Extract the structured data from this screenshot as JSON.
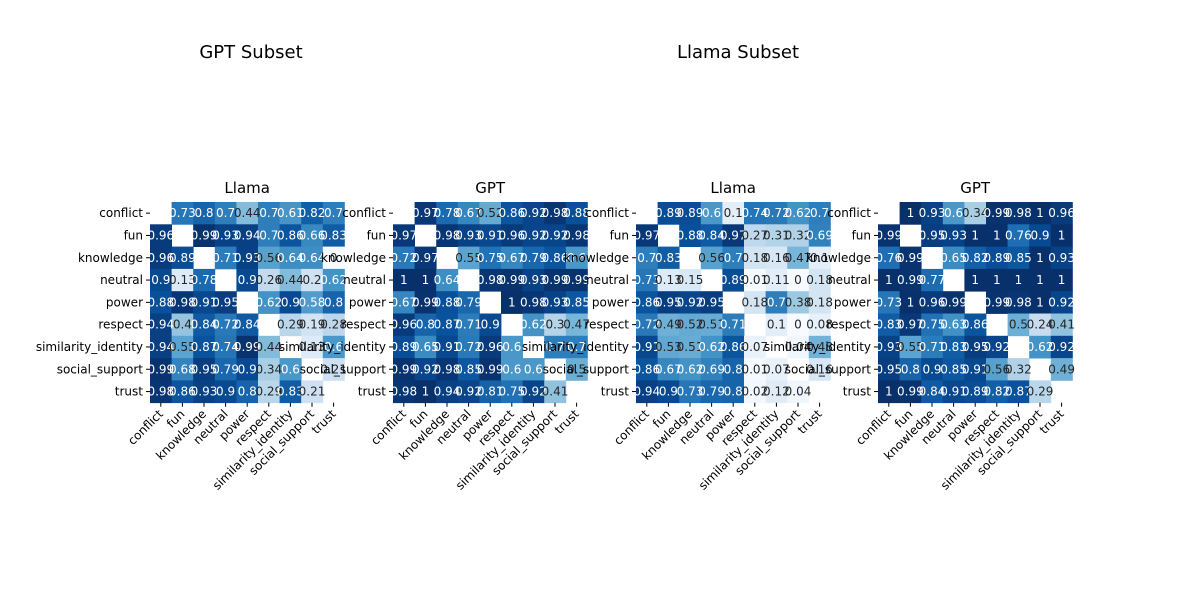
{
  "subset_titles": [
    "GPT Subset",
    "Llama Subset"
  ],
  "chart_data": [
    {
      "type": "heatmap",
      "title": "Llama",
      "subset": "GPT Subset",
      "categories": [
        "conflict",
        "fun",
        "knowledge",
        "neutral",
        "power",
        "respect",
        "similarity_identity",
        "social_support",
        "trust"
      ],
      "colormap": "Blues",
      "vrange": [
        0,
        1
      ],
      "matrix": [
        [
          null,
          0.73,
          0.8,
          0.7,
          0.44,
          0.7,
          0.61,
          0.82,
          0.7
        ],
        [
          0.96,
          null,
          0.99,
          0.93,
          0.94,
          0.7,
          0.86,
          0.66,
          0.83
        ],
        [
          0.96,
          0.89,
          null,
          0.71,
          0.93,
          0.56,
          0.64,
          0.64,
          0.0
        ],
        [
          0.9,
          0.13,
          0.78,
          null,
          0.9,
          0.26,
          0.44,
          0.2,
          0.62
        ],
        [
          0.88,
          0.98,
          0.91,
          0.95,
          null,
          0.62,
          0.9,
          0.58,
          0.8
        ],
        [
          0.94,
          0.4,
          0.84,
          0.72,
          0.84,
          null,
          0.29,
          0.19,
          0.28
        ],
        [
          0.94,
          0.55,
          0.87,
          0.74,
          0.99,
          0.44,
          null,
          0.13,
          0.6
        ],
        [
          0.99,
          0.68,
          0.95,
          0.79,
          0.9,
          0.34,
          0.6,
          null,
          0.21
        ],
        [
          0.98,
          0.86,
          0.93,
          0.9,
          0.8,
          0.29,
          0.83,
          0.21,
          null
        ]
      ]
    },
    {
      "type": "heatmap",
      "title": "GPT",
      "subset": "GPT Subset",
      "categories": [
        "conflict",
        "fun",
        "knowledge",
        "neutral",
        "power",
        "respect",
        "similarity_identity",
        "social_support",
        "trust"
      ],
      "colormap": "Blues",
      "vrange": [
        0,
        1
      ],
      "matrix": [
        [
          null,
          0.97,
          0.78,
          0.67,
          0.52,
          0.86,
          0.92,
          0.98,
          0.88
        ],
        [
          0.97,
          null,
          0.98,
          0.93,
          0.91,
          0.96,
          0.92,
          0.92,
          0.98
        ],
        [
          0.72,
          0.97,
          null,
          0.55,
          0.75,
          0.67,
          0.79,
          0.86,
          0.6
        ],
        [
          1,
          1,
          0.64,
          null,
          0.98,
          0.99,
          0.93,
          0.99,
          0.99
        ],
        [
          0.67,
          0.99,
          0.88,
          0.79,
          null,
          1,
          0.98,
          0.93,
          0.85
        ],
        [
          0.96,
          0.8,
          0.87,
          0.71,
          0.9,
          null,
          0.62,
          0.3,
          0.47
        ],
        [
          0.89,
          0.65,
          0.91,
          0.72,
          0.96,
          0.6,
          null,
          0.7,
          0.7
        ],
        [
          0.99,
          0.92,
          0.98,
          0.85,
          0.99,
          0.6,
          0.6,
          null,
          0.5
        ],
        [
          0.98,
          1,
          0.94,
          0.92,
          0.81,
          0.75,
          0.92,
          0.41,
          null
        ]
      ]
    },
    {
      "type": "heatmap",
      "title": "Llama",
      "subset": "Llama Subset",
      "categories": [
        "conflict",
        "fun",
        "knowledge",
        "neutral",
        "power",
        "respect",
        "similarity_identity",
        "social_support",
        "trust"
      ],
      "colormap": "Blues",
      "vrange": [
        0,
        1
      ],
      "matrix": [
        [
          null,
          0.89,
          0.89,
          0.6,
          0.1,
          0.74,
          0.72,
          0.62,
          0.7
        ],
        [
          0.97,
          null,
          0.88,
          0.84,
          0.97,
          0.27,
          0.31,
          0.32,
          0.69
        ],
        [
          0.7,
          0.83,
          null,
          0.56,
          0.7,
          0.18,
          0.16,
          0.47,
          0.1
        ],
        [
          0.73,
          0.13,
          0.15,
          null,
          0.89,
          0.01,
          0.11,
          0,
          0.18
        ],
        [
          0.86,
          0.95,
          0.92,
          0.95,
          null,
          0.18,
          0.7,
          0.38,
          0.18
        ],
        [
          0.72,
          0.49,
          0.52,
          0.51,
          0.71,
          null,
          0.1,
          0,
          0.08
        ],
        [
          0.91,
          0.53,
          0.51,
          0.62,
          0.86,
          0.07,
          null,
          0.04,
          0.48
        ],
        [
          0.86,
          0.67,
          0.62,
          0.69,
          0.8,
          0.01,
          0.07,
          null,
          0.16
        ],
        [
          0.94,
          0.9,
          0.73,
          0.79,
          0.8,
          0.02,
          0.12,
          0.04,
          null
        ]
      ]
    },
    {
      "type": "heatmap",
      "title": "GPT",
      "subset": "Llama Subset",
      "categories": [
        "conflict",
        "fun",
        "knowledge",
        "neutral",
        "power",
        "respect",
        "similarity_identity",
        "social_support",
        "trust"
      ],
      "colormap": "Blues",
      "vrange": [
        0,
        1
      ],
      "matrix": [
        [
          null,
          1,
          0.93,
          0.6,
          0.34,
          0.99,
          0.98,
          1,
          0.96
        ],
        [
          0.99,
          null,
          0.95,
          0.93,
          1,
          1,
          0.76,
          0.9,
          1
        ],
        [
          0.76,
          0.99,
          null,
          0.65,
          0.82,
          0.89,
          0.85,
          1,
          0.93
        ],
        [
          1,
          0.99,
          0.77,
          null,
          1,
          1,
          1,
          1,
          1
        ],
        [
          0.73,
          1,
          0.96,
          0.99,
          null,
          0.99,
          0.98,
          1,
          0.92
        ],
        [
          0.83,
          0.97,
          0.75,
          0.63,
          0.86,
          null,
          0.5,
          0.24,
          0.41
        ],
        [
          0.93,
          0.55,
          0.71,
          0.83,
          0.95,
          0.92,
          null,
          0.62,
          0.92
        ],
        [
          0.95,
          0.8,
          0.9,
          0.85,
          0.91,
          0.56,
          0.32,
          null,
          0.49
        ],
        [
          1,
          0.99,
          0.84,
          0.91,
          0.89,
          0.82,
          0.87,
          0.29,
          null
        ]
      ]
    }
  ]
}
